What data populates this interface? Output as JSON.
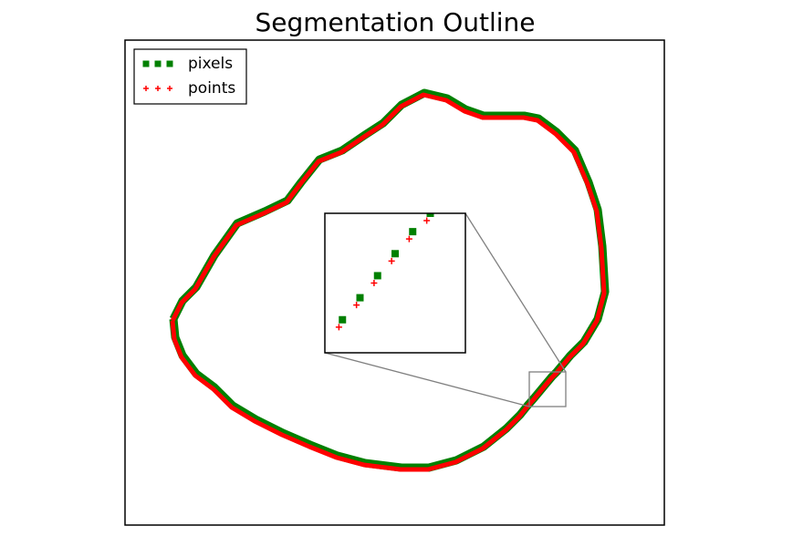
{
  "chart_data": {
    "type": "scatter",
    "title": "Segmentation Outline",
    "xlim": [
      0,
      591
    ],
    "ylim": [
      0,
      532
    ],
    "legend": "upper left",
    "inset": {
      "xlim": [
        443,
        483
      ],
      "ylim": [
        130,
        168
      ]
    },
    "series": [
      {
        "name": "pixels",
        "color": "#008000",
        "marker": "square",
        "x": [
          53,
          63,
          78,
          98,
          123,
          153,
          178,
          193,
          213,
          238,
          263,
          283,
          303,
          328,
          353,
          373,
          393,
          418,
          438,
          453,
          473,
          493,
          508,
          518,
          523,
          526,
          518,
          503,
          488,
          478,
          473,
          468,
          463,
          458,
          453,
          448,
          441,
          433,
          418,
          393,
          363,
          333,
          303,
          263,
          233,
          203,
          173,
          143,
          118,
          98,
          78,
          63,
          55,
          53
        ],
        "values": [
          226,
          246,
          261,
          296,
          331,
          344,
          356,
          376,
          401,
          411,
          428,
          441,
          461,
          474,
          468,
          456,
          449,
          449,
          449,
          446,
          431,
          411,
          376,
          346,
          306,
          256,
          226,
          201,
          186,
          174,
          168,
          163,
          157,
          151,
          145,
          139,
          131,
          121,
          106,
          86,
          71,
          63,
          63,
          68,
          76,
          88,
          101,
          116,
          131,
          151,
          166,
          186,
          206,
          226
        ]
      },
      {
        "name": "points",
        "color": "#ff0000",
        "marker": "plus",
        "x": [
          52,
          62,
          77,
          97,
          122,
          152,
          177,
          192,
          212,
          237,
          262,
          282,
          302,
          327,
          352,
          372,
          392,
          417,
          437,
          452,
          472,
          492,
          507,
          517,
          522,
          525,
          517,
          502,
          487,
          477,
          472,
          467,
          462,
          457,
          452,
          447,
          440,
          432,
          417,
          392,
          362,
          332,
          302,
          262,
          232,
          202,
          172,
          142,
          117,
          97,
          77,
          62,
          54,
          52
        ],
        "values": [
          224,
          244,
          259,
          294,
          329,
          342,
          354,
          374,
          399,
          409,
          426,
          439,
          459,
          472,
          466,
          454,
          447,
          447,
          447,
          444,
          429,
          409,
          374,
          344,
          304,
          254,
          224,
          199,
          184,
          172,
          166,
          161,
          155,
          149,
          143,
          137,
          129,
          119,
          104,
          84,
          69,
          61,
          61,
          66,
          74,
          86,
          99,
          114,
          129,
          149,
          164,
          184,
          204,
          224
        ]
      }
    ]
  }
}
